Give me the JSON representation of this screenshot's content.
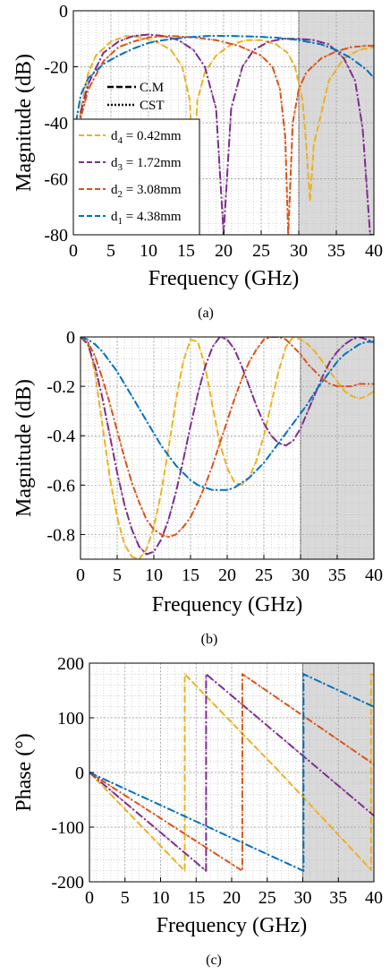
{
  "colors": {
    "d4": "#EDB120",
    "d3": "#7E2F8E",
    "d2": "#D95319",
    "d1": "#0072BD",
    "shade": "#d9d9d9"
  },
  "chart_data": [
    {
      "id": "a",
      "type": "line",
      "caption": "(a)",
      "xlabel": "Frequency (GHz)",
      "ylabel": "Magnitude (dB)",
      "xlim": [
        0,
        40
      ],
      "ylim": [
        -80,
        0
      ],
      "xticks": [
        0,
        5,
        10,
        15,
        20,
        25,
        30,
        35,
        40
      ],
      "yticks": [
        0,
        -20,
        -40,
        -60,
        -80
      ],
      "ytick_labels": [
        "0",
        "-20",
        "-40",
        "-60",
        "-80"
      ],
      "grid": true,
      "shaded_region": [
        30,
        40
      ],
      "legend_style": [
        {
          "label": "C.M",
          "dash": "dash"
        },
        {
          "label": "CST",
          "dash": "dot"
        }
      ],
      "legend": [
        {
          "key": "d4",
          "sub": "4",
          "label_pre": "d",
          "label_post": " = 0.42mm"
        },
        {
          "key": "d3",
          "sub": "3",
          "label_pre": "d",
          "label_post": " = 1.72mm"
        },
        {
          "key": "d2",
          "sub": "2",
          "label_pre": "d",
          "label_post": " = 3.08mm"
        },
        {
          "key": "d1",
          "sub": "1",
          "label_pre": "d",
          "label_post": " = 4.38mm"
        }
      ],
      "series": [
        {
          "key": "d4",
          "x": [
            0,
            0.5,
            1,
            2,
            3,
            5,
            7,
            9,
            11,
            13,
            14.5,
            15.5,
            16,
            16.5,
            17.5,
            19,
            21,
            23,
            25,
            27,
            28.5,
            29.5,
            30.5,
            31,
            31.5,
            32,
            34,
            36,
            38,
            40
          ],
          "y": [
            -80,
            -50,
            -35,
            -22,
            -16,
            -11,
            -9,
            -9.5,
            -11,
            -14,
            -20,
            -32,
            -60,
            -32,
            -22,
            -16,
            -12,
            -10.5,
            -10.5,
            -12,
            -15,
            -20,
            -32,
            -48,
            -68,
            -48,
            -25,
            -17,
            -14,
            -13
          ]
        },
        {
          "key": "d3",
          "x": [
            0,
            0.5,
            1,
            2,
            4,
            6,
            8,
            10,
            12,
            14,
            16,
            17.5,
            19,
            20,
            21,
            22.5,
            24,
            26,
            28,
            30,
            32,
            34,
            36,
            37.5,
            38.5,
            39.5,
            40
          ],
          "y": [
            -80,
            -50,
            -36,
            -26,
            -15,
            -11,
            -9,
            -8.5,
            -9,
            -10.5,
            -14,
            -20,
            -35,
            -80,
            -35,
            -20,
            -14,
            -11,
            -10,
            -10,
            -10.5,
            -12,
            -17,
            -25,
            -42,
            -80,
            -80
          ]
        },
        {
          "key": "d2",
          "x": [
            0,
            0.5,
            1,
            2,
            4,
            6,
            8,
            10,
            13,
            16,
            19,
            22,
            25,
            26.5,
            27.5,
            28.2,
            28.6,
            29.2,
            30,
            31,
            33,
            35,
            37,
            39,
            40
          ],
          "y": [
            -80,
            -50,
            -38,
            -28,
            -18,
            -13,
            -11,
            -9.5,
            -9,
            -9.5,
            -10.5,
            -12.5,
            -16,
            -20,
            -28,
            -45,
            -80,
            -40,
            -28,
            -22,
            -17,
            -14.5,
            -13,
            -12.5,
            -12.5
          ]
        },
        {
          "key": "d1",
          "x": [
            0,
            1,
            2,
            4,
            6,
            8,
            10,
            12,
            15,
            18,
            21,
            24,
            27,
            30,
            33,
            35,
            37,
            39,
            40
          ],
          "y": [
            -45,
            -30,
            -24,
            -19,
            -16,
            -13.5,
            -11.5,
            -10.5,
            -9.5,
            -9,
            -9,
            -9.2,
            -9.6,
            -10.5,
            -12,
            -14,
            -17,
            -21,
            -24
          ]
        }
      ]
    },
    {
      "id": "b",
      "type": "line",
      "caption": "(b)",
      "xlabel": "Frequency (GHz)",
      "ylabel": "Magnitude (dB)",
      "xlim": [
        0,
        40
      ],
      "ylim": [
        -0.9,
        0
      ],
      "xticks": [
        0,
        5,
        10,
        15,
        20,
        25,
        30,
        35,
        40
      ],
      "yticks": [
        0,
        -0.2,
        -0.4,
        -0.6,
        -0.8
      ],
      "ytick_labels": [
        "0",
        "-0.2",
        "-0.4",
        "-0.6",
        "-0.8"
      ],
      "grid": true,
      "shaded_region": [
        30,
        40
      ],
      "series": [
        {
          "key": "d4",
          "x": [
            0,
            1,
            2,
            3,
            4,
            5,
            6,
            7,
            8,
            9,
            10,
            11,
            12,
            13,
            14,
            15,
            16,
            17,
            18,
            19,
            20,
            21,
            22,
            23,
            24,
            25,
            26,
            27,
            28,
            29,
            30,
            31,
            32,
            33,
            34,
            35,
            36,
            37,
            38,
            39,
            40
          ],
          "y": [
            0,
            -0.02,
            -0.15,
            -0.36,
            -0.57,
            -0.73,
            -0.84,
            -0.89,
            -0.9,
            -0.86,
            -0.77,
            -0.63,
            -0.45,
            -0.26,
            -0.1,
            -0.01,
            -0.02,
            -0.12,
            -0.28,
            -0.43,
            -0.53,
            -0.59,
            -0.6,
            -0.57,
            -0.5,
            -0.4,
            -0.27,
            -0.14,
            -0.04,
            0,
            -0.01,
            -0.03,
            -0.06,
            -0.1,
            -0.14,
            -0.18,
            -0.22,
            -0.24,
            -0.25,
            -0.24,
            -0.22
          ]
        },
        {
          "key": "d3",
          "x": [
            0,
            1,
            2,
            3,
            4,
            5,
            6,
            7,
            8,
            9,
            10,
            11,
            12,
            13,
            14,
            15,
            16,
            17,
            18,
            19,
            20,
            21,
            22,
            23,
            24,
            25,
            26,
            27,
            28,
            29,
            30,
            31,
            32,
            33,
            34,
            35,
            36,
            37,
            38,
            39,
            40
          ],
          "y": [
            0,
            -0.03,
            -0.12,
            -0.25,
            -0.4,
            -0.55,
            -0.68,
            -0.78,
            -0.85,
            -0.88,
            -0.87,
            -0.82,
            -0.74,
            -0.63,
            -0.5,
            -0.36,
            -0.23,
            -0.12,
            -0.04,
            0,
            -0.01,
            -0.05,
            -0.12,
            -0.2,
            -0.28,
            -0.35,
            -0.4,
            -0.43,
            -0.44,
            -0.42,
            -0.37,
            -0.3,
            -0.23,
            -0.16,
            -0.1,
            -0.06,
            -0.03,
            -0.01,
            0,
            -0.01,
            -0.02
          ]
        },
        {
          "key": "d2",
          "x": [
            0,
            1,
            2,
            3,
            4,
            5,
            6,
            7,
            8,
            9,
            10,
            11,
            12,
            13,
            14,
            15,
            16,
            17,
            18,
            19,
            20,
            21,
            22,
            23,
            24,
            25,
            26,
            27,
            28,
            29,
            30,
            31,
            32,
            33,
            34,
            35,
            36,
            37,
            38,
            39,
            40
          ],
          "y": [
            0,
            -0.02,
            -0.08,
            -0.17,
            -0.27,
            -0.38,
            -0.49,
            -0.59,
            -0.67,
            -0.74,
            -0.78,
            -0.8,
            -0.81,
            -0.8,
            -0.77,
            -0.73,
            -0.67,
            -0.6,
            -0.52,
            -0.43,
            -0.34,
            -0.25,
            -0.17,
            -0.1,
            -0.05,
            -0.01,
            0,
            0,
            -0.01,
            -0.04,
            -0.07,
            -0.11,
            -0.14,
            -0.17,
            -0.19,
            -0.2,
            -0.2,
            -0.2,
            -0.19,
            -0.19,
            -0.19
          ]
        },
        {
          "key": "d1",
          "x": [
            0,
            1,
            2,
            3,
            4,
            5,
            6,
            7,
            8,
            9,
            10,
            11,
            12,
            13,
            14,
            15,
            16,
            17,
            18,
            19,
            20,
            21,
            22,
            23,
            24,
            25,
            26,
            27,
            28,
            29,
            30,
            31,
            32,
            33,
            34,
            35,
            36,
            37,
            38,
            39,
            40
          ],
          "y": [
            0,
            -0.01,
            -0.03,
            -0.06,
            -0.1,
            -0.14,
            -0.19,
            -0.24,
            -0.29,
            -0.34,
            -0.39,
            -0.44,
            -0.48,
            -0.52,
            -0.55,
            -0.58,
            -0.6,
            -0.61,
            -0.62,
            -0.62,
            -0.62,
            -0.61,
            -0.59,
            -0.57,
            -0.54,
            -0.51,
            -0.47,
            -0.43,
            -0.39,
            -0.35,
            -0.31,
            -0.27,
            -0.22,
            -0.18,
            -0.14,
            -0.1,
            -0.07,
            -0.05,
            -0.03,
            -0.02,
            -0.02
          ]
        }
      ]
    },
    {
      "id": "c",
      "type": "line",
      "caption": "(c)",
      "xlabel": "Frequency (GHz)",
      "ylabel": "Phase (°)",
      "xlim": [
        0,
        40
      ],
      "ylim": [
        -200,
        200
      ],
      "xticks": [
        0,
        5,
        10,
        15,
        20,
        25,
        30,
        35,
        40
      ],
      "yticks": [
        200,
        100,
        0,
        -100,
        -200
      ],
      "ytick_labels": [
        "200",
        "100",
        "0",
        "-100",
        "-200"
      ],
      "grid": true,
      "shaded_region": [
        30,
        40
      ],
      "series": [
        {
          "key": "d4",
          "x": [
            0,
            13.4,
            13.4,
            26.8,
            26.8,
            39.6,
            39.6,
            40
          ],
          "y": [
            0,
            -180,
            180,
            0,
            0,
            -178,
            180,
            178
          ]
        },
        {
          "key": "d3",
          "x": [
            0,
            16.4,
            16.4,
            32.8,
            32.8,
            40
          ],
          "y": [
            0,
            -180,
            180,
            0,
            0,
            -79
          ]
        },
        {
          "key": "d2",
          "x": [
            0,
            21.5,
            21.5,
            40
          ],
          "y": [
            0,
            -180,
            180,
            15
          ]
        },
        {
          "key": "d1",
          "x": [
            0,
            30.1,
            30.1,
            40
          ],
          "y": [
            0,
            -180,
            180,
            120
          ]
        }
      ]
    }
  ]
}
